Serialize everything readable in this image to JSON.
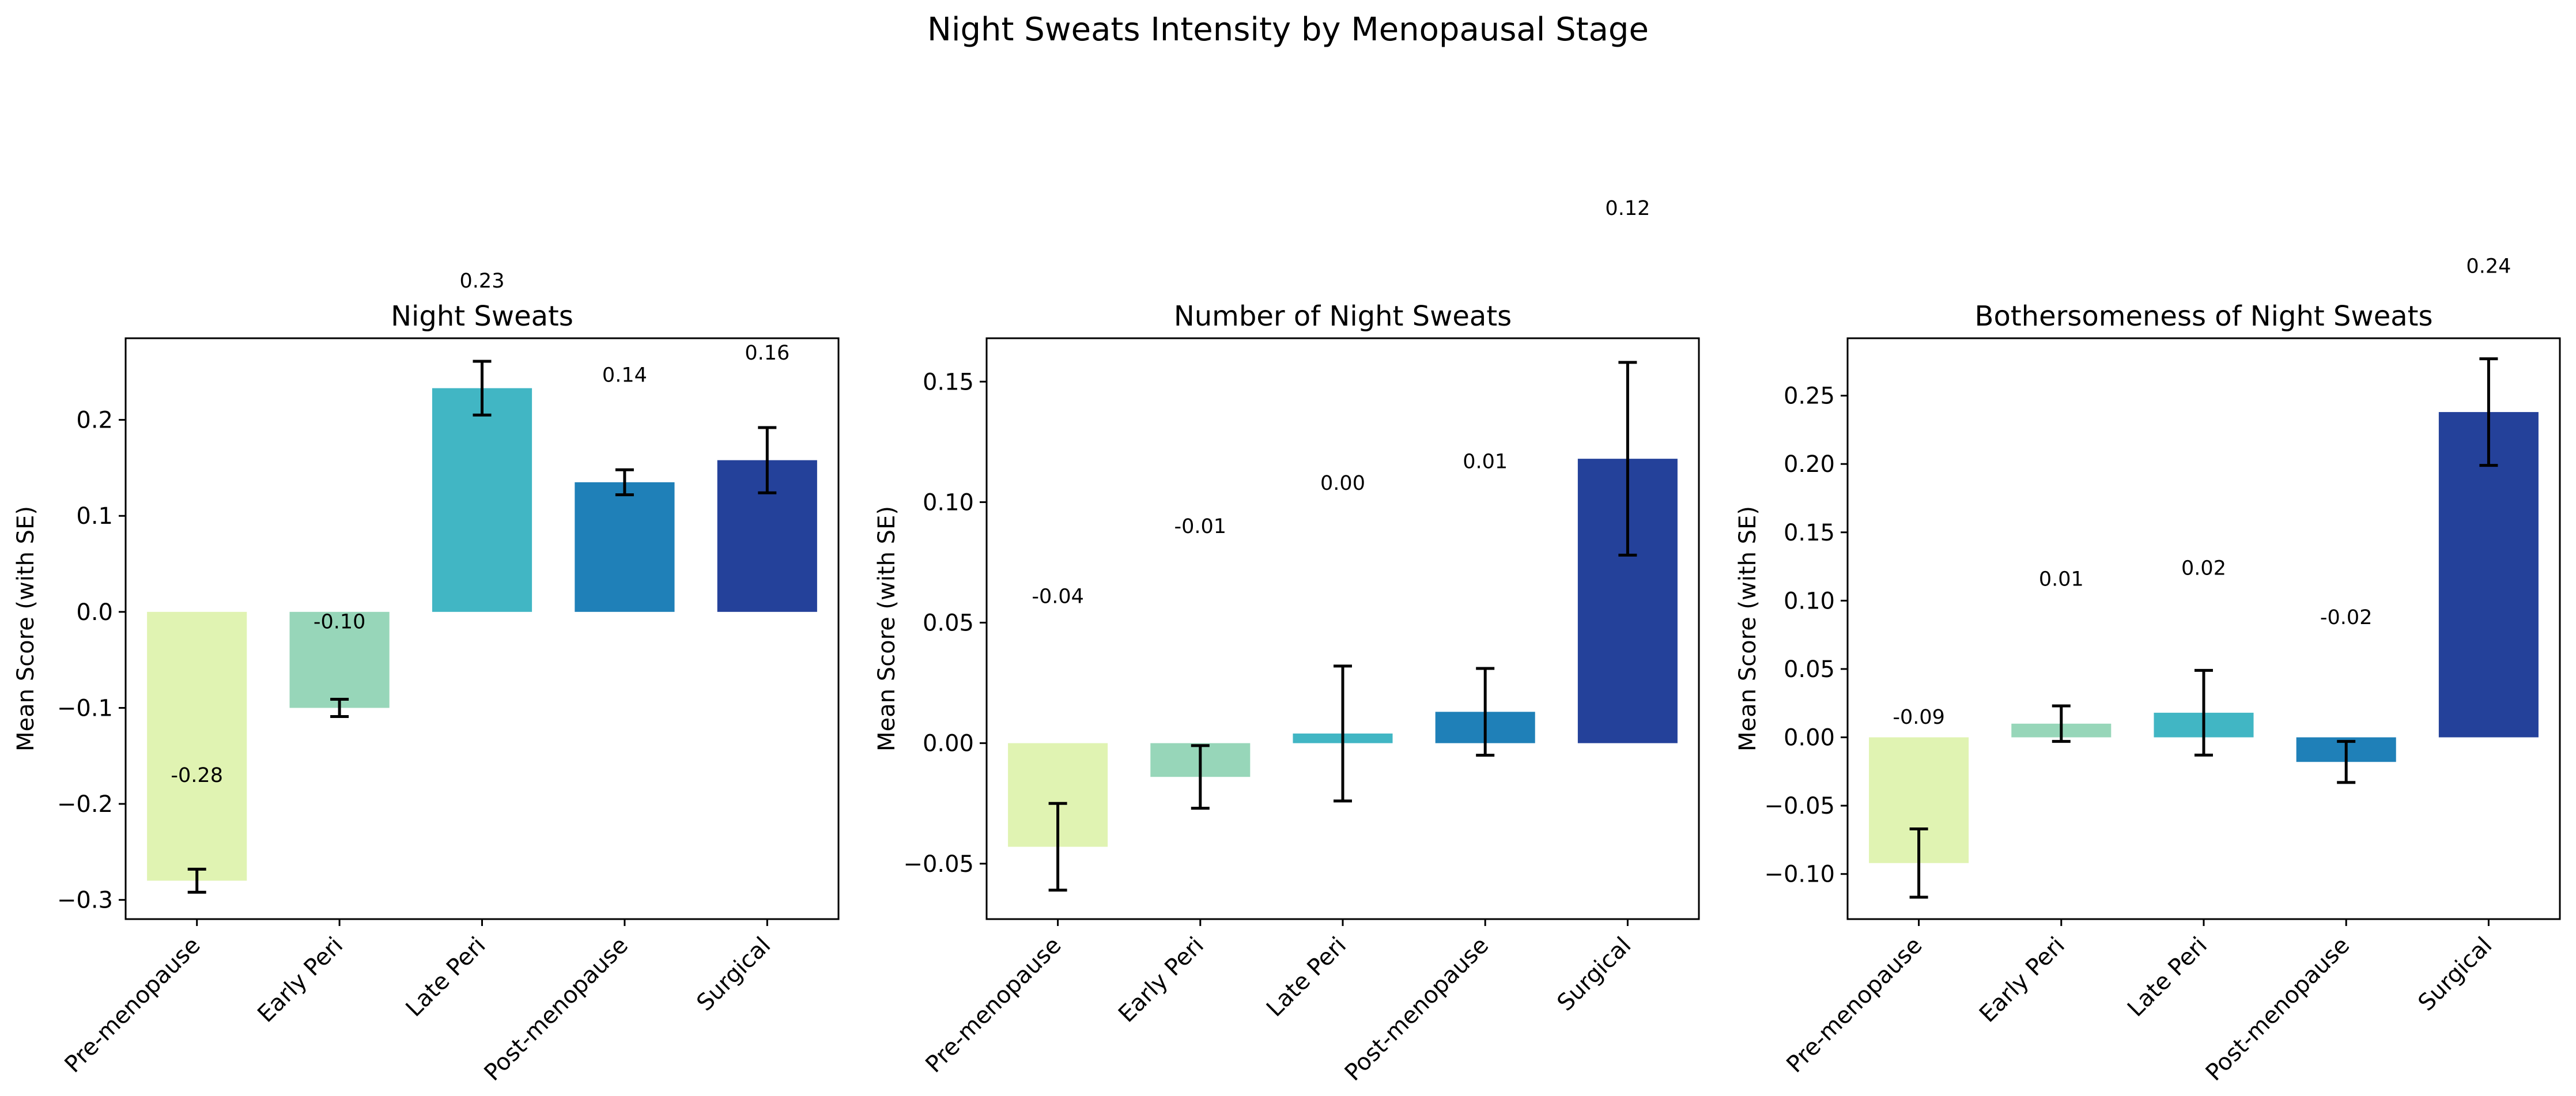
{
  "title": "Night Sweats Intensity by Menopausal Stage",
  "colors": [
    "#e0f3b2",
    "#97d6b9",
    "#41b6c4",
    "#1f80b8",
    "#24419a"
  ],
  "chart_data": [
    {
      "type": "bar",
      "title": "Night Sweats",
      "ylabel": "Mean Score (with SE)",
      "categories": [
        "Pre-menopause",
        "Early Peri",
        "Late Peri",
        "Post-menopause",
        "Surgical"
      ],
      "values": [
        -0.28,
        -0.1,
        0.233,
        0.135,
        0.158
      ],
      "errors": [
        0.012,
        0.009,
        0.028,
        0.013,
        0.034
      ],
      "value_labels": [
        "-0.28",
        "-0.10",
        "0.23",
        "0.14",
        "0.16"
      ],
      "label_values": [
        -0.17,
        -0.01,
        0.345,
        0.247,
        0.27
      ],
      "ylim": [
        -0.32,
        0.285
      ],
      "yticks": [
        -0.3,
        -0.2,
        -0.1,
        0.0,
        0.1,
        0.2
      ],
      "ytick_labels": [
        "−0.3",
        "−0.2",
        "−0.1",
        "0.0",
        "0.1",
        "0.2"
      ],
      "grid": false
    },
    {
      "type": "bar",
      "title": "Number of Night Sweats",
      "ylabel": "Mean Score (with SE)",
      "categories": [
        "Pre-menopause",
        "Early Peri",
        "Late Peri",
        "Post-menopause",
        "Surgical"
      ],
      "values": [
        -0.043,
        -0.014,
        0.004,
        0.013,
        0.118
      ],
      "errors": [
        0.018,
        0.013,
        0.028,
        0.018,
        0.04
      ],
      "value_labels": [
        "-0.04",
        "-0.01",
        "0.00",
        "0.01",
        "0.12"
      ],
      "label_values": [
        0.061,
        0.09,
        0.108,
        0.117,
        0.222
      ],
      "ylim": [
        -0.073,
        0.168
      ],
      "yticks": [
        -0.05,
        0.0,
        0.05,
        0.1,
        0.15
      ],
      "ytick_labels": [
        "−0.05",
        "0.00",
        "0.05",
        "0.10",
        "0.15"
      ],
      "grid": false
    },
    {
      "type": "bar",
      "title": "Bothersomeness of Night Sweats",
      "ylabel": "Mean Score (with SE)",
      "categories": [
        "Pre-menopause",
        "Early Peri",
        "Late Peri",
        "Post-menopause",
        "Surgical"
      ],
      "values": [
        -0.092,
        0.01,
        0.018,
        -0.018,
        0.238
      ],
      "errors": [
        0.025,
        0.013,
        0.031,
        0.015,
        0.039
      ],
      "value_labels": [
        "-0.09",
        "0.01",
        "0.02",
        "-0.02",
        "0.24"
      ],
      "label_values": [
        0.015,
        0.116,
        0.124,
        0.088,
        0.345
      ],
      "ylim": [
        -0.133,
        0.292
      ],
      "yticks": [
        -0.1,
        -0.05,
        0.0,
        0.05,
        0.1,
        0.15,
        0.2,
        0.25
      ],
      "ytick_labels": [
        "−0.10",
        "−0.05",
        "0.00",
        "0.05",
        "0.10",
        "0.15",
        "0.20",
        "0.25"
      ],
      "grid": false
    }
  ]
}
